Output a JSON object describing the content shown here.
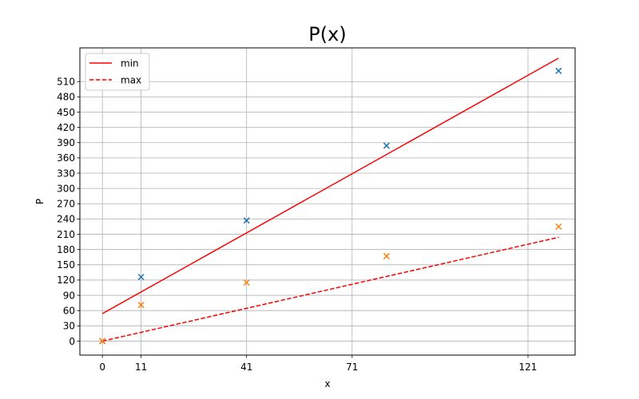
{
  "chart_data": {
    "type": "line",
    "title": "P(x)",
    "xlabel": "x",
    "ylabel": "P",
    "xlim": [
      -6.4,
      134.4
    ],
    "ylim": [
      -27.5,
      576.2
    ],
    "xticks": [
      0,
      11,
      41,
      71,
      121
    ],
    "yticks": [
      0,
      30,
      60,
      90,
      120,
      150,
      180,
      210,
      240,
      270,
      300,
      330,
      360,
      390,
      420,
      450,
      480,
      510
    ],
    "grid": true,
    "legend_position": "top-left",
    "lines": [
      {
        "name": "min",
        "style": "solid",
        "color": "#ff0000",
        "x": [
          0,
          129.7
        ],
        "y": [
          54,
          556
        ]
      },
      {
        "name": "max",
        "style": "dashed",
        "color": "#ff0000",
        "x": [
          0,
          129.7
        ],
        "y": [
          0,
          204
        ]
      }
    ],
    "scatter": [
      {
        "color": "#1f77b4",
        "marker": "x",
        "x": [
          0,
          11,
          41,
          80.8,
          129.7
        ],
        "y": [
          0,
          126,
          237,
          384,
          531
        ]
      },
      {
        "color": "#ff7f0e",
        "marker": "x",
        "x": [
          0,
          11,
          41,
          80.8,
          129.7
        ],
        "y": [
          0,
          71,
          115,
          167,
          225
        ]
      }
    ]
  }
}
